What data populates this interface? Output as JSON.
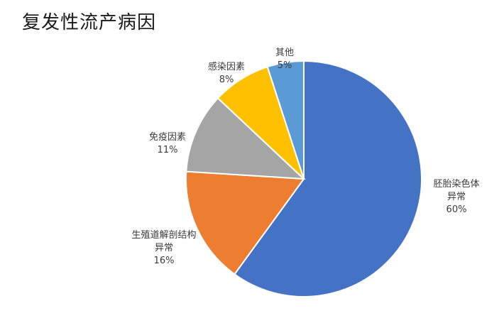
{
  "chart_data": {
    "type": "pie",
    "title": "复发性流产病因",
    "categories": [
      "胚胎染色体异常",
      "生殖道解剖结构异常",
      "免疫因素",
      "感染因素",
      "其他"
    ],
    "values": [
      60,
      16,
      11,
      8,
      5
    ],
    "colors": [
      "#4472C4",
      "#ED7D31",
      "#A5A5A5",
      "#FFC000",
      "#5B9BD5"
    ],
    "labels": [
      {
        "name_lines": [
          "胚胎染色体",
          "异常"
        ],
        "pct": "60%"
      },
      {
        "name_lines": [
          "生殖道解剖结构",
          "异常"
        ],
        "pct": "16%"
      },
      {
        "name_lines": [
          "免疫因素"
        ],
        "pct": "11%"
      },
      {
        "name_lines": [
          "感染因素"
        ],
        "pct": "8%"
      },
      {
        "name_lines": [
          "其他"
        ],
        "pct": "5%"
      }
    ]
  }
}
